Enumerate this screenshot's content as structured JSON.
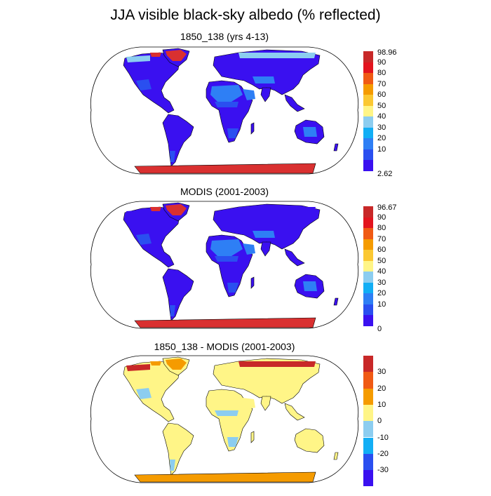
{
  "title": "JJA visible black-sky albedo (% reflected)",
  "panels": [
    {
      "title": "1850_138 (yrs 4-13)",
      "max_label": "98.96",
      "min_label": "2.62",
      "levels": [
        "90",
        "80",
        "70",
        "60",
        "50",
        "40",
        "30",
        "20",
        "10"
      ],
      "colors": [
        "#3a10f0",
        "#2a4ff0",
        "#2e7ff5",
        "#12aef5",
        "#8ccdf0",
        "#fff587",
        "#fbc832",
        "#f59b00",
        "#f05a14",
        "#e3141e",
        "#c82828"
      ],
      "map_colors": {
        "ocean": "#ffffff",
        "land": "#3a10f0",
        "arid": "#2e7ff5",
        "semiarid": "#2a4ff0",
        "ice": "#d93030",
        "northern_edge": "#8ccdf0"
      }
    },
    {
      "title": "MODIS (2001-2003)",
      "max_label": "96.67",
      "min_label": "0",
      "levels": [
        "90",
        "80",
        "70",
        "60",
        "50",
        "40",
        "30",
        "20",
        "10"
      ],
      "colors": [
        "#3a10f0",
        "#2a4ff0",
        "#2e7ff5",
        "#12aef5",
        "#8ccdf0",
        "#fff587",
        "#fbc832",
        "#f59b00",
        "#f05a14",
        "#e3141e",
        "#c82828"
      ],
      "map_colors": {
        "ocean": "#ffffff",
        "land": "#3a10f0",
        "arid": "#2e7ff5",
        "semiarid": "#2a4ff0",
        "ice": "#d93030",
        "northern_edge": "#3a10f0"
      }
    },
    {
      "title": "1850_138 - MODIS (2001-2003)",
      "levels": [
        "30",
        "20",
        "10",
        "0",
        "-10",
        "-20",
        "-30"
      ],
      "colors": [
        "#3a10f0",
        "#2a4ff0",
        "#12aef5",
        "#8ccdf0",
        "#fff587",
        "#f59b00",
        "#f05a14",
        "#c82828"
      ],
      "map_colors": {
        "ocean": "#ffffff",
        "land": "#fff587",
        "arid": "#fff587",
        "semiarid": "#8ccdf0",
        "ice": "#f59b00",
        "northern_edge": "#c82828"
      }
    }
  ]
}
